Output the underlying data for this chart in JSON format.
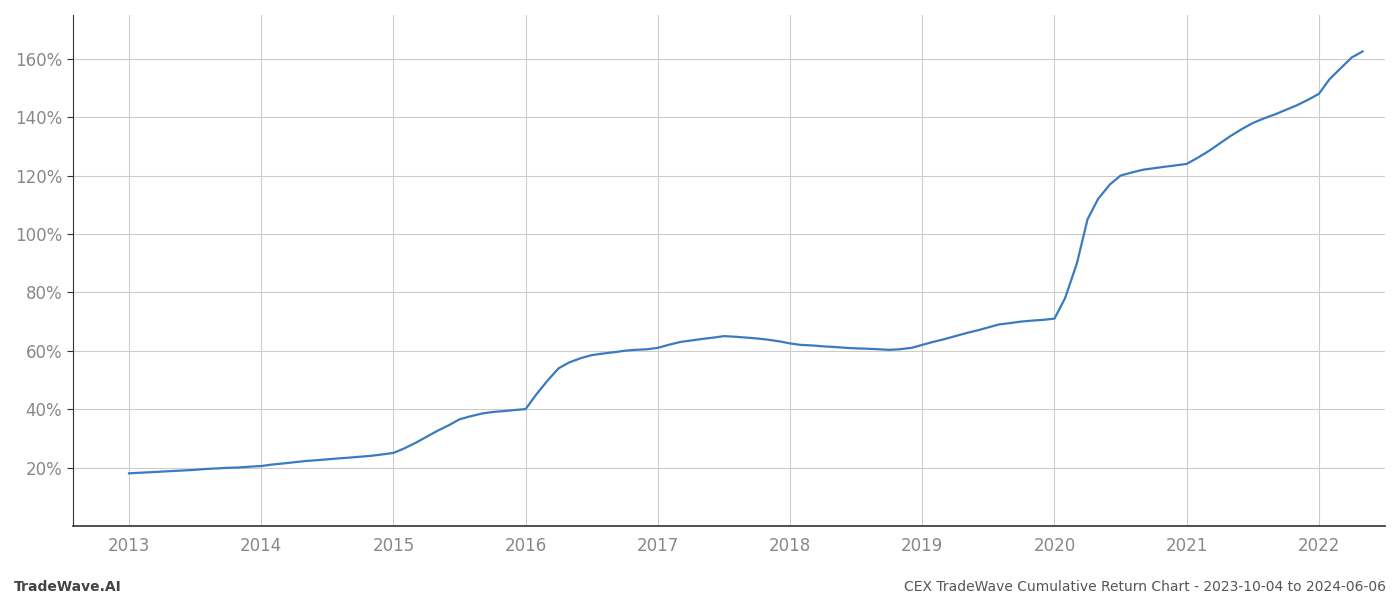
{
  "title": "",
  "xlabel": "",
  "ylabel": "",
  "footer_left": "TradeWave.AI",
  "footer_right": "CEX TradeWave Cumulative Return Chart - 2023-10-04 to 2024-06-06",
  "line_color": "#3a7abf",
  "background_color": "#ffffff",
  "grid_color": "#cccccc",
  "x_years": [
    2013,
    2014,
    2015,
    2016,
    2017,
    2018,
    2019,
    2020,
    2021,
    2022
  ],
  "data_x": [
    2013.0,
    2013.08,
    2013.17,
    2013.25,
    2013.33,
    2013.42,
    2013.5,
    2013.58,
    2013.67,
    2013.75,
    2013.83,
    2013.92,
    2014.0,
    2014.08,
    2014.17,
    2014.25,
    2014.33,
    2014.42,
    2014.5,
    2014.58,
    2014.67,
    2014.75,
    2014.83,
    2014.92,
    2015.0,
    2015.08,
    2015.17,
    2015.25,
    2015.33,
    2015.42,
    2015.5,
    2015.58,
    2015.67,
    2015.75,
    2015.83,
    2015.92,
    2016.0,
    2016.08,
    2016.17,
    2016.25,
    2016.33,
    2016.42,
    2016.5,
    2016.58,
    2016.67,
    2016.75,
    2016.83,
    2016.92,
    2017.0,
    2017.08,
    2017.17,
    2017.25,
    2017.33,
    2017.42,
    2017.5,
    2017.58,
    2017.67,
    2017.75,
    2017.83,
    2017.92,
    2018.0,
    2018.08,
    2018.17,
    2018.25,
    2018.33,
    2018.42,
    2018.5,
    2018.58,
    2018.67,
    2018.75,
    2018.83,
    2018.92,
    2019.0,
    2019.08,
    2019.17,
    2019.25,
    2019.33,
    2019.42,
    2019.5,
    2019.58,
    2019.67,
    2019.75,
    2019.83,
    2019.92,
    2020.0,
    2020.08,
    2020.17,
    2020.25,
    2020.33,
    2020.42,
    2020.5,
    2020.58,
    2020.67,
    2020.75,
    2020.83,
    2020.92,
    2021.0,
    2021.08,
    2021.17,
    2021.25,
    2021.33,
    2021.42,
    2021.5,
    2021.58,
    2021.67,
    2021.75,
    2021.83,
    2021.92,
    2022.0,
    2022.08,
    2022.17,
    2022.25,
    2022.33
  ],
  "data_y": [
    18.0,
    18.2,
    18.4,
    18.6,
    18.8,
    19.0,
    19.2,
    19.5,
    19.7,
    19.9,
    20.0,
    20.3,
    20.5,
    21.0,
    21.4,
    21.8,
    22.2,
    22.5,
    22.8,
    23.1,
    23.4,
    23.7,
    24.0,
    24.5,
    25.0,
    26.5,
    28.5,
    30.5,
    32.5,
    34.5,
    36.5,
    37.5,
    38.5,
    39.0,
    39.3,
    39.7,
    40.0,
    45.0,
    50.0,
    54.0,
    56.0,
    57.5,
    58.5,
    59.0,
    59.5,
    60.0,
    60.3,
    60.5,
    61.0,
    62.0,
    63.0,
    63.5,
    64.0,
    64.5,
    65.0,
    64.8,
    64.5,
    64.2,
    63.8,
    63.2,
    62.5,
    62.0,
    61.8,
    61.5,
    61.3,
    61.0,
    60.8,
    60.7,
    60.5,
    60.3,
    60.5,
    61.0,
    62.0,
    63.0,
    64.0,
    65.0,
    66.0,
    67.0,
    68.0,
    69.0,
    69.5,
    70.0,
    70.3,
    70.6,
    71.0,
    78.0,
    90.0,
    105.0,
    112.0,
    117.0,
    120.0,
    121.0,
    122.0,
    122.5,
    123.0,
    123.5,
    124.0,
    126.0,
    128.5,
    131.0,
    133.5,
    136.0,
    138.0,
    139.5,
    141.0,
    142.5,
    144.0,
    146.0,
    148.0,
    153.0,
    157.0,
    160.5,
    162.5
  ],
  "ylim": [
    0,
    175
  ],
  "yticks": [
    20,
    40,
    60,
    80,
    100,
    120,
    140,
    160
  ],
  "xlim": [
    2012.58,
    2022.5
  ],
  "footer_fontsize": 10,
  "tick_label_color": "#888888",
  "tick_fontsize": 12,
  "grid_alpha": 1.0,
  "line_width": 1.6,
  "spine_color": "#333333"
}
